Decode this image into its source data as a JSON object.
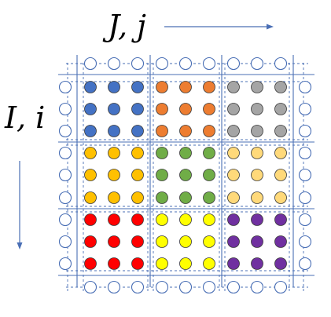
{
  "labels": {
    "column_axis": "J, j",
    "row_axis": "I, i"
  },
  "grid": {
    "blocks": 3,
    "points_per_block": 3
  },
  "colors": {
    "line": "#4a6fb5",
    "halo_fill": "#ffffff",
    "halo_stroke": "#4a6fb5",
    "dot_stroke": "#3a3a3a",
    "blocks": [
      [
        "#4472c4",
        "#ed7d31",
        "#a5a5a5"
      ],
      [
        "#ffc000",
        "#70ad47",
        "#ffd97a"
      ],
      [
        "#ff0000",
        "#ffff00",
        "#7030a0"
      ]
    ]
  }
}
